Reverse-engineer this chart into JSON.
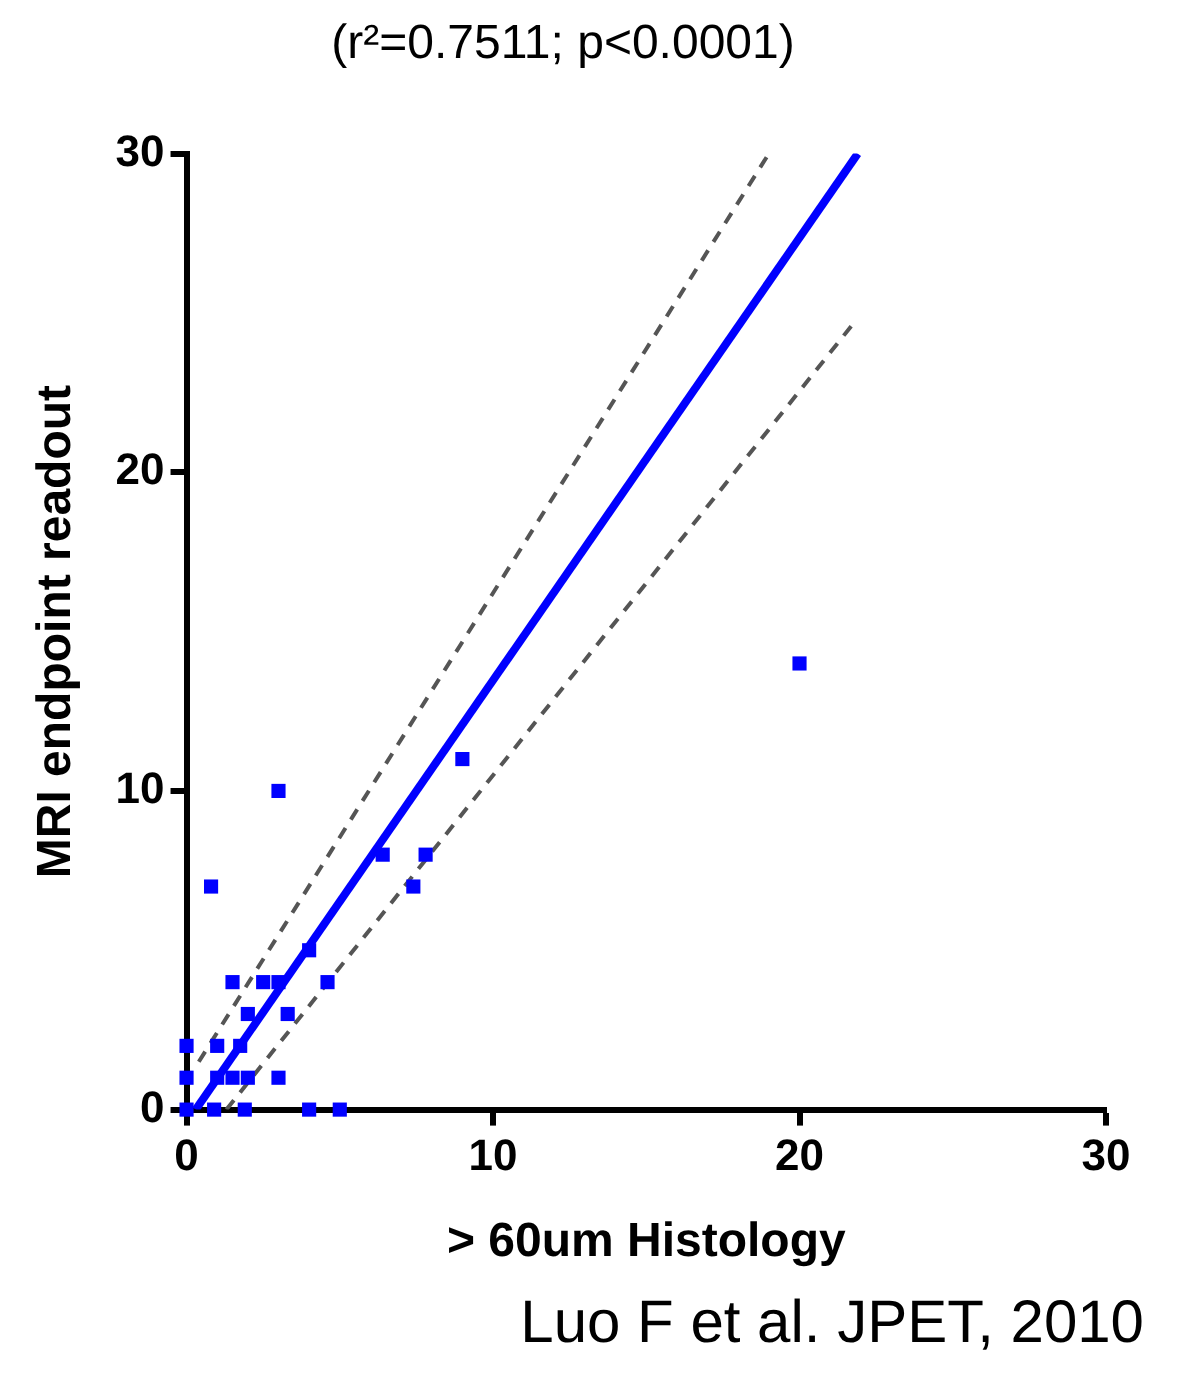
{
  "chart_data": {
    "type": "scatter",
    "title": "(r²=0.7511; p<0.0001)",
    "xlabel": "> 60um Histology",
    "ylabel": "MRI endpoint readout",
    "annotations": [
      "Luo F et al. JPET, 2010"
    ],
    "xlim": [
      0,
      30
    ],
    "ylim": [
      0,
      30
    ],
    "xticks": [
      0,
      10,
      20,
      30
    ],
    "yticks": [
      0,
      10,
      20,
      30
    ],
    "grid": false,
    "legend": false,
    "series": [
      {
        "type": "scatter",
        "color": "#0000ff",
        "marker": "square",
        "x": [
          20,
          9,
          3,
          0.8,
          6.4,
          7.8,
          7.4,
          4,
          1.5,
          2.5,
          3,
          4.6,
          2,
          3.3,
          0,
          1,
          1.75,
          0,
          1,
          1.5,
          2,
          3,
          0,
          0.9,
          1.9,
          4,
          5
        ],
        "values": [
          14,
          11,
          10,
          7,
          8,
          8,
          7,
          5,
          4,
          4,
          4,
          4,
          3,
          3,
          2,
          2,
          2,
          1,
          1,
          1,
          1,
          1,
          0,
          0,
          0,
          0,
          0
        ]
      },
      {
        "type": "line",
        "color": "#0000ff",
        "marker": "none",
        "line_style": "solid",
        "x": [
          0.3,
          21.9
        ],
        "values": [
          0,
          30
        ]
      },
      {
        "type": "line",
        "color": "#555555",
        "marker": "none",
        "line_style": "dashed",
        "x": [
          0.4,
          19
        ],
        "values": [
          1.5,
          30
        ]
      },
      {
        "type": "line",
        "color": "#555555",
        "marker": "none",
        "line_style": "dashed",
        "x": [
          1.3,
          21.7
        ],
        "values": [
          0,
          24.6
        ]
      }
    ]
  }
}
